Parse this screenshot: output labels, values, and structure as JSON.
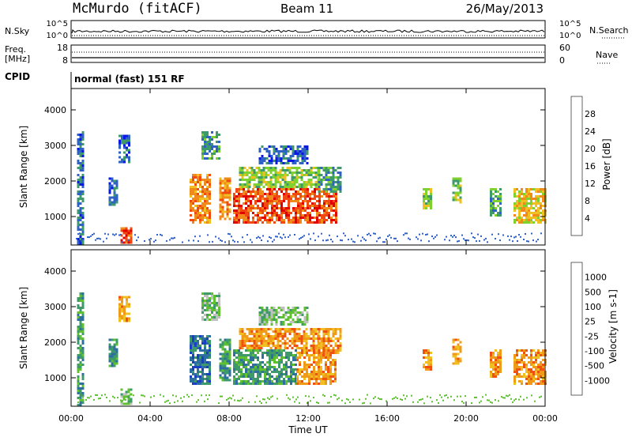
{
  "header": {
    "station": "McMurdo  (fitACF)",
    "beam": "Beam 11",
    "date": "26/May/2013"
  },
  "top_panel": {
    "left_label_1": "N.Sky",
    "left_label_2": "Freq.",
    "left_label_3": "[MHz]",
    "left_label_4": "CPID",
    "right_label_1": "N.Search",
    "right_label_2": "Nave",
    "left_tick_hi": "10^5",
    "left_tick_lo": "10^0",
    "right_tick_hi": "10^5",
    "right_tick_lo": "10^0",
    "freq_tick_hi": "18",
    "freq_tick_lo": "8",
    "nave_tick_hi": "60",
    "nave_tick_lo": "0",
    "cpid_text": "normal (fast) 151 RF"
  },
  "chart_data": [
    {
      "type": "heatmap",
      "name": "Power",
      "ylabel": "Slant Range [km]",
      "ylim": [
        200,
        4600
      ],
      "yticks": [
        "1000",
        "2000",
        "3000",
        "4000"
      ],
      "xticks": [],
      "colorbar": {
        "label": "Power [dB]",
        "levels": [
          "4",
          "8",
          "12",
          "16",
          "20",
          "24",
          "28"
        ],
        "colors": [
          "#0a18e6",
          "#2f62c4",
          "#3f9a6a",
          "#7fd130",
          "#f0c020",
          "#f08a1a",
          "#f04a10",
          "#e00000"
        ]
      },
      "regions": [
        {
          "t0": 0.3,
          "t1": 0.6,
          "r0": 250,
          "r1": 3400,
          "level": 1
        },
        {
          "t0": 1.9,
          "t1": 2.3,
          "r0": 1300,
          "r1": 2100,
          "level": 1
        },
        {
          "t0": 2.4,
          "t1": 2.9,
          "r0": 2500,
          "r1": 3300,
          "level": 1
        },
        {
          "t0": 2.5,
          "t1": 3.1,
          "r0": 250,
          "r1": 700,
          "level": 6
        },
        {
          "t0": 6.0,
          "t1": 7.0,
          "r0": 800,
          "r1": 2200,
          "level": 5
        },
        {
          "t0": 6.6,
          "t1": 7.5,
          "r0": 2600,
          "r1": 3400,
          "level": 2
        },
        {
          "t0": 7.5,
          "t1": 8.1,
          "r0": 900,
          "r1": 2100,
          "level": 5
        },
        {
          "t0": 8.2,
          "t1": 13.4,
          "r0": 800,
          "r1": 1800,
          "level": 6
        },
        {
          "t0": 8.5,
          "t1": 12.5,
          "r0": 1800,
          "r1": 2400,
          "level": 3
        },
        {
          "t0": 12.5,
          "t1": 13.6,
          "r0": 1700,
          "r1": 2400,
          "level": 2
        },
        {
          "t0": 9.5,
          "t1": 12.0,
          "r0": 2500,
          "r1": 3000,
          "level": 1
        },
        {
          "t0": 17.8,
          "t1": 18.2,
          "r0": 1200,
          "r1": 1800,
          "level": 3
        },
        {
          "t0": 19.3,
          "t1": 19.7,
          "r0": 1400,
          "r1": 2100,
          "level": 3
        },
        {
          "t0": 21.2,
          "t1": 21.7,
          "r0": 1000,
          "r1": 1800,
          "level": 2
        },
        {
          "t0": 22.4,
          "t1": 24.0,
          "r0": 800,
          "r1": 1800,
          "level": 4
        }
      ]
    },
    {
      "type": "heatmap",
      "name": "Velocity",
      "ylabel": "Slant Range [km]",
      "xlabel": "Time UT",
      "ylim": [
        200,
        4600
      ],
      "yticks": [
        "1000",
        "2000",
        "3000",
        "4000"
      ],
      "xticks": [
        "00:00",
        "04:00",
        "08:00",
        "12:00",
        "16:00",
        "20:00",
        "00:00"
      ],
      "colorbar": {
        "label": "Velocity [m s-1]",
        "levels": [
          "1000",
          "500",
          "100",
          "25",
          "-25",
          "-100",
          "-500",
          "-1000"
        ],
        "colors": [
          "#1a3fc4",
          "#2f6fa0",
          "#3f9a6a",
          "#5fc030",
          "#c0c0c0",
          "#f0c020",
          "#f09a1a",
          "#f05010",
          "#e00000"
        ]
      },
      "regions": [
        {
          "t0": 0.3,
          "t1": 0.6,
          "r0": 250,
          "r1": 3400,
          "level": 2
        },
        {
          "t0": 1.9,
          "t1": 2.3,
          "r0": 1300,
          "r1": 2100,
          "level": 2
        },
        {
          "t0": 2.4,
          "t1": 2.9,
          "r0": 2600,
          "r1": 3300,
          "level": 6
        },
        {
          "t0": 2.5,
          "t1": 3.1,
          "r0": 250,
          "r1": 700,
          "level": 3
        },
        {
          "t0": 6.0,
          "t1": 7.0,
          "r0": 800,
          "r1": 2200,
          "level": 1
        },
        {
          "t0": 6.6,
          "t1": 7.5,
          "r0": 2600,
          "r1": 3400,
          "level": 3
        },
        {
          "t0": 7.5,
          "t1": 8.1,
          "r0": 900,
          "r1": 2100,
          "level": 2
        },
        {
          "t0": 8.2,
          "t1": 11.4,
          "r0": 800,
          "r1": 1800,
          "level": 2
        },
        {
          "t0": 11.4,
          "t1": 13.4,
          "r0": 800,
          "r1": 1800,
          "level": 6
        },
        {
          "t0": 8.5,
          "t1": 12.5,
          "r0": 1800,
          "r1": 2400,
          "level": 6
        },
        {
          "t0": 12.5,
          "t1": 13.6,
          "r0": 1700,
          "r1": 2400,
          "level": 6
        },
        {
          "t0": 9.5,
          "t1": 12.0,
          "r0": 2500,
          "r1": 3000,
          "level": 3
        },
        {
          "t0": 17.8,
          "t1": 18.2,
          "r0": 1200,
          "r1": 1800,
          "level": 6
        },
        {
          "t0": 19.3,
          "t1": 19.7,
          "r0": 1400,
          "r1": 2100,
          "level": 6
        },
        {
          "t0": 21.2,
          "t1": 21.7,
          "r0": 1000,
          "r1": 1800,
          "level": 6
        },
        {
          "t0": 22.4,
          "t1": 24.0,
          "r0": 800,
          "r1": 1800,
          "level": 6
        }
      ]
    }
  ]
}
